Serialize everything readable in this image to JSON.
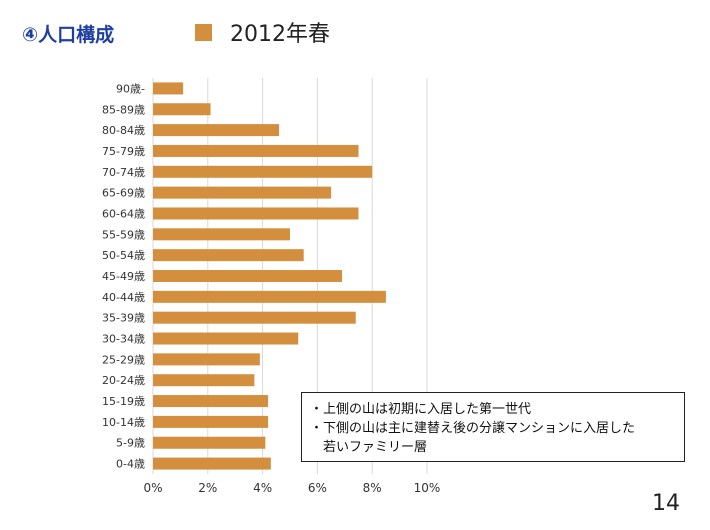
{
  "slide": {
    "title": "④人口構成",
    "page_number": "14",
    "note_lines": [
      "・上側の山は初期に入居した第一世代",
      "・下側の山は主に建替え後の分譲マンションに入居した",
      "　若いファミリー層"
    ]
  },
  "colors": {
    "bar": "#d38e3e",
    "title": "#1f3fa0",
    "grid": "#d9d9d9"
  },
  "chart_data": {
    "type": "bar",
    "orientation": "horizontal",
    "title": "",
    "legend": [
      "2012年春"
    ],
    "categories": [
      "90歳-",
      "85-89歳",
      "80-84歳",
      "75-79歳",
      "70-74歳",
      "65-69歳",
      "60-64歳",
      "55-59歳",
      "50-54歳",
      "45-49歳",
      "40-44歳",
      "35-39歳",
      "30-34歳",
      "25-29歳",
      "20-24歳",
      "15-19歳",
      "10-14歳",
      "5-9歳",
      "0-4歳"
    ],
    "series": [
      {
        "name": "2012年春",
        "values": [
          1.1,
          2.1,
          4.6,
          7.5,
          8.0,
          6.5,
          7.5,
          5.0,
          5.5,
          6.9,
          8.5,
          7.4,
          5.3,
          3.9,
          3.7,
          4.2,
          4.2,
          4.1,
          4.3
        ]
      }
    ],
    "xlim": [
      0,
      10
    ],
    "xticks": [
      "0%",
      "2%",
      "4%",
      "6%",
      "8%",
      "10%"
    ],
    "grid": true
  }
}
